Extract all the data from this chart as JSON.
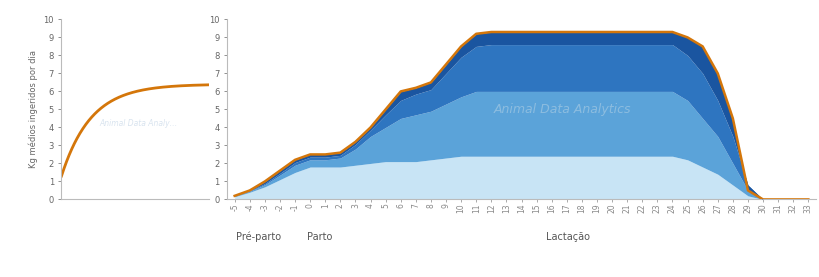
{
  "bg_color": "#ffffff",
  "left_panel": {
    "ylabel": "Kg médios ingeridos por dia",
    "ylim": [
      0,
      10
    ],
    "xlim": [
      0,
      1
    ],
    "yticks": [
      0,
      1,
      2,
      3,
      4,
      5,
      6,
      7,
      8,
      9,
      10
    ],
    "curve_color": "#d4760a",
    "curve_lw": 2.0
  },
  "right_panel": {
    "ylim": [
      0,
      10
    ],
    "yticks": [
      0,
      1,
      2,
      3,
      4,
      5,
      6,
      7,
      8,
      9,
      10
    ],
    "x_labels": [
      "-5",
      "-4",
      "-3",
      "-2",
      "-1",
      "0",
      "1",
      "2",
      "3",
      "4",
      "5",
      "6",
      "7",
      "8",
      "9",
      "10",
      "11",
      "12",
      "13",
      "14",
      "15",
      "16",
      "17",
      "18",
      "19",
      "20",
      "21",
      "22",
      "23",
      "24",
      "25",
      "26",
      "27",
      "28",
      "29",
      "30",
      "31",
      "32",
      "33"
    ],
    "orange_line_color": "#d4760a",
    "orange_line_lw": 1.8,
    "color_layer1": "#c8e4f5",
    "color_layer2": "#5ba3d9",
    "color_layer3": "#2e75c0",
    "color_layer4": "#1a55a0",
    "orange_y": [
      0.2,
      0.5,
      1.0,
      1.6,
      2.2,
      2.5,
      2.5,
      2.6,
      3.2,
      4.0,
      5.0,
      6.0,
      6.2,
      6.5,
      7.5,
      8.5,
      9.2,
      9.3,
      9.3,
      9.3,
      9.3,
      9.3,
      9.3,
      9.3,
      9.3,
      9.3,
      9.3,
      9.3,
      9.3,
      9.3,
      9.0,
      8.5,
      7.0,
      4.5,
      0.5,
      0.0,
      0.0,
      0.0,
      0.0
    ],
    "fill1_y": [
      0.15,
      0.4,
      0.7,
      1.1,
      1.5,
      1.8,
      1.8,
      1.8,
      1.9,
      2.0,
      2.1,
      2.1,
      2.1,
      2.2,
      2.3,
      2.4,
      2.4,
      2.4,
      2.4,
      2.4,
      2.4,
      2.4,
      2.4,
      2.4,
      2.4,
      2.4,
      2.4,
      2.4,
      2.4,
      2.4,
      2.2,
      1.8,
      1.4,
      0.8,
      0.2,
      0.0,
      0.0,
      0.0,
      0.0
    ],
    "fill2_y": [
      0.18,
      0.45,
      0.82,
      1.35,
      1.9,
      2.2,
      2.2,
      2.3,
      2.8,
      3.5,
      4.0,
      4.5,
      4.7,
      4.9,
      5.3,
      5.7,
      6.0,
      6.0,
      6.0,
      6.0,
      6.0,
      6.0,
      6.0,
      6.0,
      6.0,
      6.0,
      6.0,
      6.0,
      6.0,
      6.0,
      5.5,
      4.5,
      3.5,
      2.0,
      0.5,
      0.0,
      0.0,
      0.0,
      0.0
    ],
    "fill3_y": [
      0.2,
      0.48,
      0.88,
      1.45,
      2.05,
      2.35,
      2.35,
      2.45,
      3.05,
      3.85,
      4.7,
      5.5,
      5.85,
      6.1,
      7.0,
      7.9,
      8.5,
      8.6,
      8.6,
      8.6,
      8.6,
      8.6,
      8.6,
      8.6,
      8.6,
      8.6,
      8.6,
      8.6,
      8.6,
      8.6,
      8.0,
      7.0,
      5.5,
      3.5,
      0.8,
      0.0,
      0.0,
      0.0,
      0.0
    ]
  }
}
